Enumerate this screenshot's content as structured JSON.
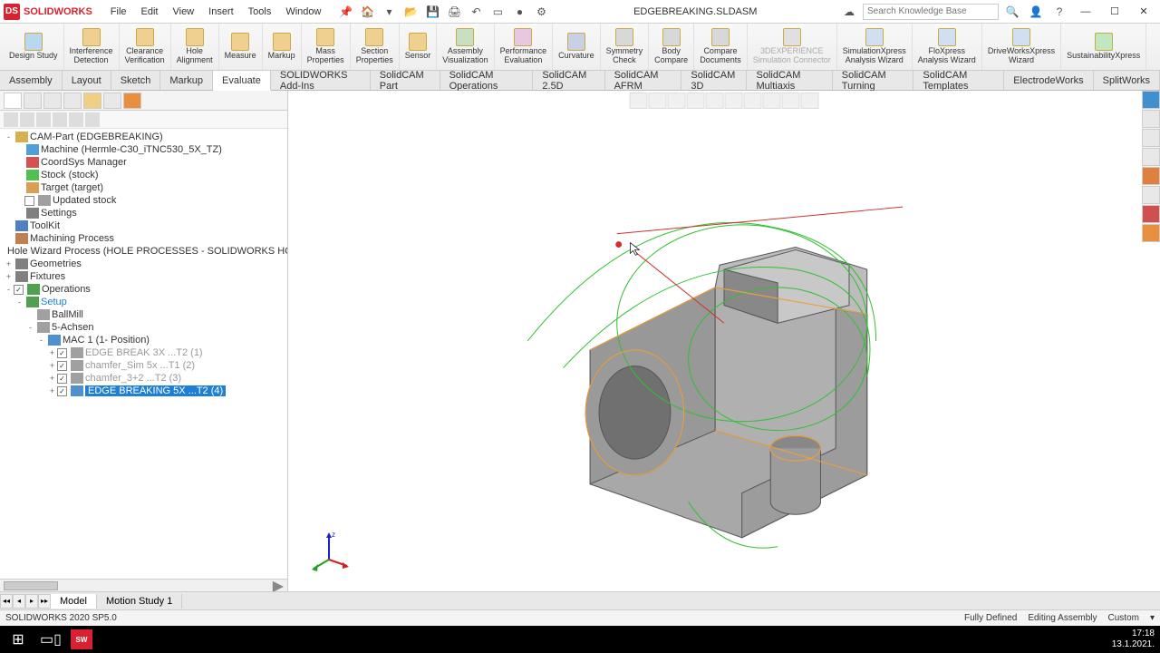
{
  "app": {
    "brand": "SOLIDWORKS",
    "title": "EDGEBREAKING.SLDASM"
  },
  "menu": [
    "File",
    "Edit",
    "View",
    "Insert",
    "Tools",
    "Window"
  ],
  "search_placeholder": "Search Knowledge Base",
  "ribbon": [
    {
      "label": "Design Study",
      "c": "#b8d8f0"
    },
    {
      "label": "Interference\nDetection",
      "c": "#f0d090"
    },
    {
      "label": "Clearance\nVerification",
      "c": "#f0d090"
    },
    {
      "label": "Hole\nAlignment",
      "c": "#f0d090"
    },
    {
      "label": "Measure",
      "c": "#f0d090"
    },
    {
      "label": "Markup",
      "c": "#f0d090"
    },
    {
      "label": "Mass\nProperties",
      "c": "#f0d090"
    },
    {
      "label": "Section\nProperties",
      "c": "#f0d090"
    },
    {
      "label": "Sensor",
      "c": "#f0d090"
    },
    {
      "label": "Assembly\nVisualization",
      "c": "#c8e0c0"
    },
    {
      "label": "Performance\nEvaluation",
      "c": "#e8c8e0"
    },
    {
      "label": "Curvature",
      "c": "#c8d0e8"
    },
    {
      "label": "Symmetry\nCheck",
      "c": "#d8d8d8"
    },
    {
      "label": "Body\nCompare",
      "c": "#d8d8d8"
    },
    {
      "label": "Compare\nDocuments",
      "c": "#d8d8d8"
    },
    {
      "label": "3DEXPERIENCE\nSimulation Connector",
      "c": "#e0e0e0",
      "dim": true
    },
    {
      "label": "SimulationXpress\nAnalysis Wizard",
      "c": "#d0e0f0"
    },
    {
      "label": "FloXpress\nAnalysis Wizard",
      "c": "#d0e0f0"
    },
    {
      "label": "DriveWorksXpress\nWizard",
      "c": "#d0e0f0"
    },
    {
      "label": "SustainabilityXpress",
      "c": "#c0e8c0"
    }
  ],
  "tabs": [
    "Assembly",
    "Layout",
    "Sketch",
    "Markup",
    "Evaluate",
    "SOLIDWORKS Add-Ins",
    "SolidCAM Part",
    "SolidCAM Operations",
    "SolidCAM 2.5D",
    "SolidCAM AFRM",
    "SolidCAM 3D",
    "SolidCAM Multiaxis",
    "SolidCAM Turning",
    "SolidCAM Templates",
    "ElectrodeWorks",
    "SplitWorks"
  ],
  "active_tab": 4,
  "tree": [
    {
      "i": 0,
      "e": "-",
      "ic": "#d8b050",
      "t": "CAM-Part (EDGEBREAKING)"
    },
    {
      "i": 1,
      "ic": "#50a0d8",
      "t": "Machine (Hermle-C30_iTNC530_5X_TZ)"
    },
    {
      "i": 1,
      "ic": "#d85050",
      "t": "CoordSys Manager"
    },
    {
      "i": 1,
      "ic": "#50c050",
      "t": "Stock (stock)"
    },
    {
      "i": 1,
      "ic": "#d8a050",
      "t": "Target (target)"
    },
    {
      "i": 1,
      "chk": "",
      "ic": "#a0a0a0",
      "t": "Updated stock"
    },
    {
      "i": 1,
      "ic": "#808080",
      "t": "Settings"
    },
    {
      "i": 0,
      "ic": "#5080c0",
      "t": "ToolKit"
    },
    {
      "i": 0,
      "ic": "#c08050",
      "t": "Machining Process"
    },
    {
      "i": 0,
      "ic": "#c08050",
      "t": "Hole Wizard Process (HOLE PROCESSES - SOLIDWORKS HOLE WIZARD -"
    },
    {
      "i": 0,
      "e": "+",
      "ic": "#808080",
      "t": "Geometries"
    },
    {
      "i": 0,
      "e": "+",
      "ic": "#808080",
      "t": "Fixtures"
    },
    {
      "i": 0,
      "e": "-",
      "chk": "✓",
      "ic": "#50a050",
      "t": "Operations"
    },
    {
      "i": 1,
      "e": "-",
      "ic": "#50a050",
      "t": "Setup",
      "style": "color:#1e7fd6"
    },
    {
      "i": 2,
      "ic": "#a0a0a0",
      "t": "BallMill"
    },
    {
      "i": 2,
      "e": "-",
      "ic": "#a0a0a0",
      "t": "5-Achsen"
    },
    {
      "i": 3,
      "e": "-",
      "ic": "#5090d0",
      "t": "MAC 1 (1- Position)"
    },
    {
      "i": 4,
      "e": "+",
      "chk": "✓",
      "ic": "#a0a0a0",
      "t": "EDGE BREAK 3X ...T2 (1)",
      "dim": true
    },
    {
      "i": 4,
      "e": "+",
      "chk": "✓",
      "ic": "#a0a0a0",
      "t": "chamfer_Sim 5x ...T1 (2)",
      "dim": true
    },
    {
      "i": 4,
      "e": "+",
      "chk": "✓",
      "ic": "#a0a0a0",
      "t": "chamfer_3+2 ...T2 (3)",
      "dim": true
    },
    {
      "i": 4,
      "e": "+",
      "chk": "✓",
      "ic": "#5090d0",
      "t": "EDGE BREAKING 5X ...T2 (4)",
      "sel": true
    }
  ],
  "bottom_tabs": [
    "Model",
    "Motion Study 1"
  ],
  "status": {
    "version": "SOLIDWORKS 2020 SP5.0",
    "defined": "Fully Defined",
    "mode": "Editing Assembly",
    "units": "Custom"
  },
  "taskbar": {
    "time": "17:18",
    "date": "13.1.2021."
  }
}
